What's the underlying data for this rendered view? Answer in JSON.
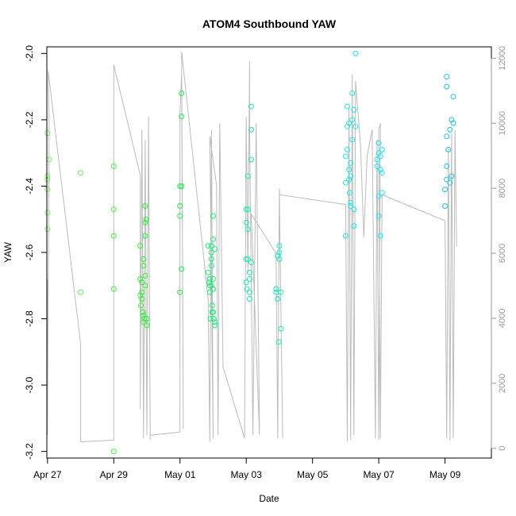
{
  "chart_data": {
    "type": "scatter",
    "title": "ATOM4 Southbound YAW",
    "xlabel": "Date",
    "ylabel": "YAW",
    "xlim": [
      -0.02,
      13.4
    ],
    "ylim": [
      -3.22,
      -1.98
    ],
    "y2lim": [
      -300,
      12350
    ],
    "x_ticks": [
      {
        "v": 0,
        "label": "Apr 27"
      },
      {
        "v": 2,
        "label": "Apr 29"
      },
      {
        "v": 4,
        "label": "May 01"
      },
      {
        "v": 6,
        "label": "May 03"
      },
      {
        "v": 8,
        "label": "May 05"
      },
      {
        "v": 10,
        "label": "May 07"
      },
      {
        "v": 12,
        "label": "May 09"
      }
    ],
    "y_ticks": [
      -3.2,
      -3.0,
      -2.8,
      -2.6,
      -2.4,
      -2.2,
      -2.0
    ],
    "y2_ticks": [
      0,
      2000,
      4000,
      6000,
      8000,
      10000,
      12000
    ],
    "grid": false,
    "point_color_gradient": [
      "#7ef06a",
      "#1ff02a",
      "#19e8c4",
      "#1ee6f0",
      "#23a6dc"
    ],
    "series": [
      {
        "role": "secondary-axis line",
        "color": "#bbbbbb",
        "points": [
          [
            0.0,
            5200
          ],
          [
            0.0,
            400
          ],
          [
            0.05,
            10000
          ],
          [
            0.02,
            11600
          ],
          [
            1.0,
            3200
          ],
          [
            1.0,
            200
          ],
          [
            2.0,
            250
          ],
          [
            2.0,
            10000
          ],
          [
            2.0,
            11800
          ],
          [
            2.8,
            8400
          ],
          [
            2.8,
            1200
          ],
          [
            2.85,
            9800
          ],
          [
            2.9,
            300
          ],
          [
            2.95,
            9500
          ],
          [
            3.0,
            400
          ],
          [
            3.05,
            10000
          ],
          [
            3.1,
            250
          ],
          [
            3.05,
            10200
          ],
          [
            3.1,
            400
          ],
          [
            4.0,
            500
          ],
          [
            4.0,
            10300
          ],
          [
            4.05,
            11500
          ],
          [
            4.1,
            600
          ],
          [
            4.05,
            12200
          ],
          [
            4.85,
            4600
          ],
          [
            4.9,
            200
          ],
          [
            4.95,
            9800
          ],
          [
            5.0,
            300
          ],
          [
            4.9,
            9600
          ],
          [
            5.1,
            8100
          ],
          [
            5.15,
            400
          ],
          [
            5.2,
            10000
          ],
          [
            5.3,
            2500
          ],
          [
            5.95,
            300
          ],
          [
            6.0,
            10200
          ],
          [
            6.05,
            5400
          ],
          [
            6.1,
            11900
          ],
          [
            6.1,
            9800
          ],
          [
            6.2,
            400
          ],
          [
            6.3,
            10000
          ],
          [
            6.4,
            400
          ],
          [
            6.15,
            7200
          ],
          [
            6.9,
            6000
          ],
          [
            6.95,
            300
          ],
          [
            7.0,
            8000
          ],
          [
            7.05,
            4000
          ],
          [
            7.1,
            300
          ],
          [
            7.0,
            7800
          ],
          [
            9.0,
            7500
          ],
          [
            9.05,
            200
          ],
          [
            9.1,
            10500
          ],
          [
            9.15,
            250
          ],
          [
            9.2,
            11500
          ],
          [
            9.25,
            400
          ],
          [
            9.3,
            11300
          ],
          [
            9.45,
            9300
          ],
          [
            9.55,
            6500
          ],
          [
            9.65,
            9000
          ],
          [
            9.8,
            9800
          ],
          [
            9.9,
            300
          ],
          [
            9.95,
            9500
          ],
          [
            10.0,
            250
          ],
          [
            10.05,
            10000
          ],
          [
            10.0,
            9800
          ],
          [
            10.05,
            300
          ],
          [
            10.1,
            7800
          ],
          [
            12.0,
            7000
          ],
          [
            12.05,
            300
          ],
          [
            12.1,
            9200
          ],
          [
            12.15,
            250
          ],
          [
            12.2,
            9700
          ],
          [
            12.25,
            300
          ],
          [
            12.3,
            9800
          ],
          [
            12.35,
            6200
          ]
        ]
      },
      {
        "role": "YAW points",
        "points": [
          [
            0.0,
            -2.24
          ],
          [
            0.0,
            -2.37
          ],
          [
            0.0,
            -2.38
          ],
          [
            0.0,
            -2.41
          ],
          [
            0.0,
            -2.48
          ],
          [
            0.0,
            -2.53
          ],
          [
            0.05,
            -2.32
          ],
          [
            1.0,
            -2.36
          ],
          [
            1.0,
            -2.72
          ],
          [
            2.0,
            -2.34
          ],
          [
            2.0,
            -2.47
          ],
          [
            2.0,
            -2.55
          ],
          [
            2.0,
            -2.71
          ],
          [
            2.0,
            -3.2
          ],
          [
            2.8,
            -2.58
          ],
          [
            2.8,
            -2.68
          ],
          [
            2.8,
            -2.73
          ],
          [
            2.82,
            -2.76
          ],
          [
            2.85,
            -2.74
          ],
          [
            2.85,
            -2.72
          ],
          [
            2.85,
            -2.69
          ],
          [
            2.88,
            -2.78
          ],
          [
            2.9,
            -2.62
          ],
          [
            2.9,
            -2.64
          ],
          [
            2.9,
            -2.79
          ],
          [
            2.9,
            -2.81
          ],
          [
            2.92,
            -2.8
          ],
          [
            2.95,
            -2.46
          ],
          [
            2.95,
            -2.51
          ],
          [
            2.95,
            -2.55
          ],
          [
            2.95,
            -2.67
          ],
          [
            2.95,
            -2.7
          ],
          [
            2.98,
            -2.5
          ],
          [
            3.0,
            -2.8
          ],
          [
            3.0,
            -2.82
          ],
          [
            4.0,
            -2.4
          ],
          [
            4.0,
            -2.46
          ],
          [
            4.0,
            -2.49
          ],
          [
            4.0,
            -2.72
          ],
          [
            4.05,
            -2.12
          ],
          [
            4.05,
            -2.19
          ],
          [
            4.05,
            -2.4
          ],
          [
            4.05,
            -2.65
          ],
          [
            4.85,
            -2.58
          ],
          [
            4.85,
            -2.66
          ],
          [
            4.88,
            -2.69
          ],
          [
            4.9,
            -2.68
          ],
          [
            4.9,
            -2.7
          ],
          [
            4.9,
            -2.72
          ],
          [
            4.92,
            -2.8
          ],
          [
            4.95,
            -2.58
          ],
          [
            4.95,
            -2.6
          ],
          [
            4.95,
            -2.62
          ],
          [
            4.95,
            -2.64
          ],
          [
            4.95,
            -2.7
          ],
          [
            4.97,
            -2.76
          ],
          [
            4.97,
            -2.78
          ],
          [
            5.0,
            -2.49
          ],
          [
            5.0,
            -2.56
          ],
          [
            5.0,
            -2.68
          ],
          [
            5.0,
            -2.71
          ],
          [
            5.0,
            -2.78
          ],
          [
            5.02,
            -2.8
          ],
          [
            5.05,
            -2.82
          ],
          [
            5.05,
            -2.59
          ],
          [
            5.05,
            -2.81
          ],
          [
            6.0,
            -2.47
          ],
          [
            6.0,
            -2.51
          ],
          [
            6.0,
            -2.62
          ],
          [
            6.0,
            -2.69
          ],
          [
            6.02,
            -2.71
          ],
          [
            6.05,
            -2.37
          ],
          [
            6.05,
            -2.47
          ],
          [
            6.05,
            -2.53
          ],
          [
            6.05,
            -2.62
          ],
          [
            6.1,
            -2.66
          ],
          [
            6.1,
            -2.68
          ],
          [
            6.1,
            -2.72
          ],
          [
            6.1,
            -2.74
          ],
          [
            6.15,
            -2.16
          ],
          [
            6.15,
            -2.23
          ],
          [
            6.15,
            -2.32
          ],
          [
            6.15,
            -2.63
          ],
          [
            6.9,
            -2.71
          ],
          [
            6.9,
            -2.72
          ],
          [
            6.95,
            -2.61
          ],
          [
            6.95,
            -2.74
          ],
          [
            6.98,
            -2.87
          ],
          [
            7.0,
            -2.58
          ],
          [
            7.0,
            -2.6
          ],
          [
            7.0,
            -2.62
          ],
          [
            7.05,
            -2.83
          ],
          [
            7.05,
            -2.72
          ],
          [
            9.0,
            -2.55
          ],
          [
            9.0,
            -2.39
          ],
          [
            9.0,
            -2.31
          ],
          [
            9.05,
            -2.29
          ],
          [
            9.05,
            -2.22
          ],
          [
            9.05,
            -2.16
          ],
          [
            9.1,
            -2.35
          ],
          [
            9.1,
            -2.38
          ],
          [
            9.1,
            -2.21
          ],
          [
            9.12,
            -2.42
          ],
          [
            9.15,
            -2.45
          ],
          [
            9.15,
            -2.46
          ],
          [
            9.15,
            -2.37
          ],
          [
            9.15,
            -2.33
          ],
          [
            9.2,
            -2.12
          ],
          [
            9.2,
            -2.26
          ],
          [
            9.2,
            -2.2
          ],
          [
            9.25,
            -2.47
          ],
          [
            9.25,
            -2.52
          ],
          [
            9.25,
            -2.17
          ],
          [
            9.3,
            -2.0
          ],
          [
            9.3,
            -2.22
          ],
          [
            9.95,
            -2.34
          ],
          [
            9.95,
            -2.32
          ],
          [
            10.0,
            -2.27
          ],
          [
            10.0,
            -2.3
          ],
          [
            10.0,
            -2.43
          ],
          [
            10.0,
            -2.49
          ],
          [
            10.05,
            -2.31
          ],
          [
            10.05,
            -2.35
          ],
          [
            10.05,
            -2.55
          ],
          [
            10.1,
            -2.29
          ],
          [
            10.1,
            -2.36
          ],
          [
            10.1,
            -2.42
          ],
          [
            12.0,
            -2.41
          ],
          [
            12.0,
            -2.46
          ],
          [
            12.05,
            -2.07
          ],
          [
            12.05,
            -2.1
          ],
          [
            12.05,
            -2.38
          ],
          [
            12.05,
            -2.34
          ],
          [
            12.05,
            -2.25
          ],
          [
            12.1,
            -2.29
          ],
          [
            12.15,
            -2.39
          ],
          [
            12.15,
            -2.23
          ],
          [
            12.2,
            -2.2
          ],
          [
            12.2,
            -2.37
          ],
          [
            12.25,
            -2.21
          ],
          [
            12.25,
            -2.13
          ]
        ]
      }
    ]
  }
}
